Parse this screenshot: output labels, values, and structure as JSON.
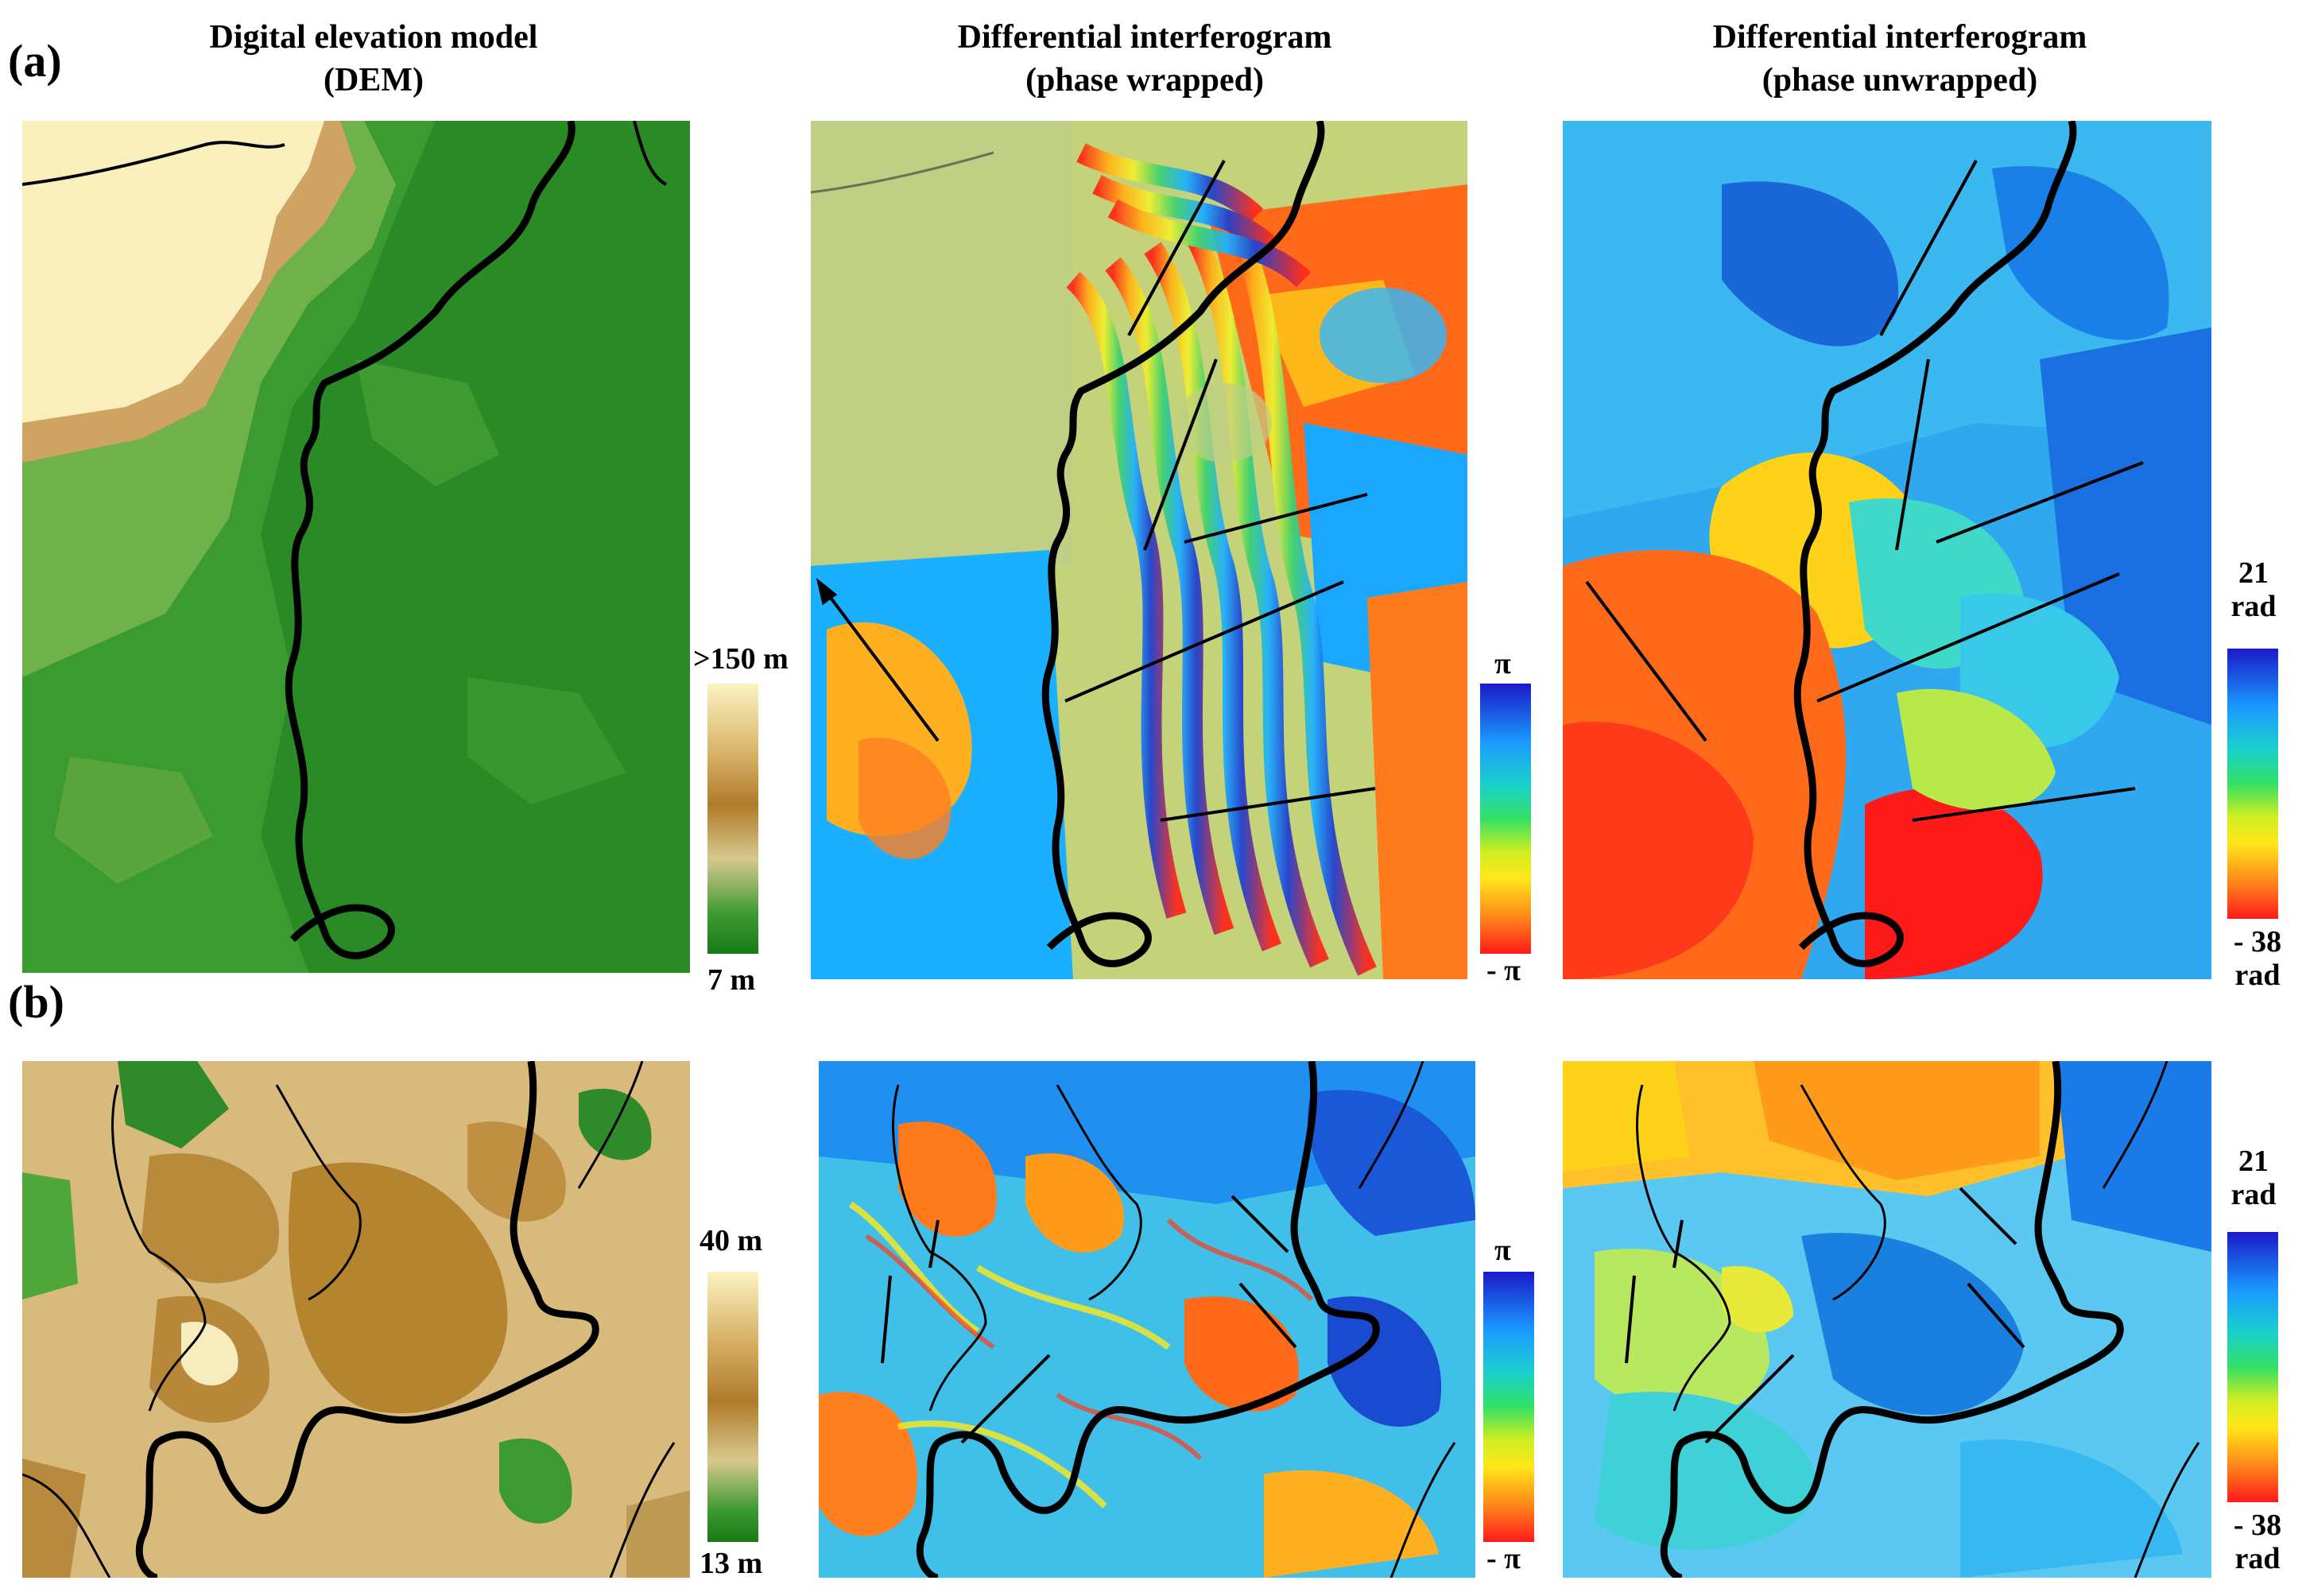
{
  "panels": {
    "a": "(a)",
    "b": "(b)"
  },
  "titles": {
    "dem": [
      "Digital elevation model",
      "(DEM)"
    ],
    "wrapped": [
      "Differential interferogram",
      "(phase wrapped)"
    ],
    "unwrapped": [
      "Differential interferogram",
      "(phase unwrapped)"
    ]
  },
  "colorbars": {
    "a_dem": {
      "max": ">150 m",
      "min": "7 m"
    },
    "a_wrapped": {
      "max": "π",
      "min": "- π"
    },
    "a_unwrapped": {
      "max": [
        "21",
        "rad"
      ],
      "min": [
        "- 38",
        "rad"
      ]
    },
    "b_dem": {
      "max": "40 m",
      "min": "13 m"
    },
    "b_wrapped": {
      "max": "π",
      "min": "- π"
    },
    "b_unwrapped": {
      "max": [
        "21",
        "rad"
      ],
      "min": [
        "- 38",
        "rad"
      ]
    }
  },
  "colors": {
    "dem_gradient": [
      "#fbf3c2",
      "#c8954a",
      "#b07a2c",
      "#d9c889",
      "#2e8a2a",
      "#177a17"
    ],
    "phase_gradient": [
      "#1a1ac8",
      "#1a9cff",
      "#1ad2c8",
      "#33e066",
      "#ccee22",
      "#ffe81a",
      "#ff8a1a",
      "#ff1a1a"
    ],
    "river": "#000000"
  }
}
